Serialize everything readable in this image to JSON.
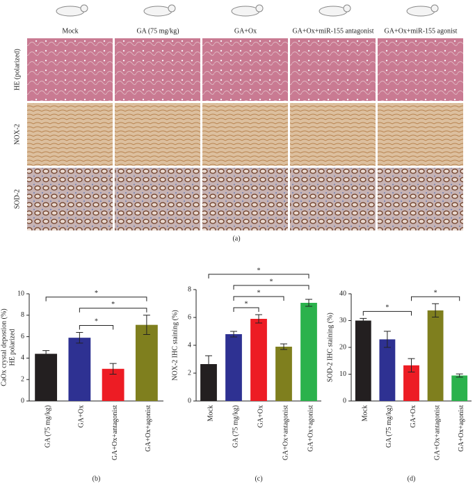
{
  "figure_a": {
    "column_labels": [
      "Mock",
      "GA (75 mg/kg)",
      "GA+Ox",
      "GA+Ox+miR-155 antagonist",
      "GA+Ox+miR-155 agonist"
    ],
    "row_labels": [
      "HE (polarized)",
      "NOX-2",
      "SOD-2"
    ],
    "panel_label": "(a)"
  },
  "chart_data": [
    {
      "type": "bar",
      "panel_label": "(b)",
      "y_label": [
        "CaOx crystal depostion (%)",
        "HE polarized"
      ],
      "categories": [
        "GA (75 mg/kg)",
        "GA+Ox",
        "GA+Ox+antagonist",
        "GA+Ox+agonist"
      ],
      "values": [
        4.4,
        5.9,
        3.0,
        7.1
      ],
      "errors": [
        0.3,
        0.5,
        0.5,
        0.9
      ],
      "colors": [
        "#231f20",
        "#2e3192",
        "#ed1c24",
        "#7f7f1e"
      ],
      "ylim": [
        0,
        10
      ],
      "yticks": [
        0,
        2,
        4,
        6,
        8,
        10
      ],
      "significance": [
        {
          "groups": [
            1,
            2
          ],
          "label": "*"
        },
        {
          "groups": [
            1,
            3
          ],
          "label": "*"
        },
        {
          "groups": [
            0,
            3
          ],
          "label": "*"
        }
      ]
    },
    {
      "type": "bar",
      "panel_label": "(c)",
      "y_label": [
        "NOX-2 IHC staining (%)"
      ],
      "categories": [
        "Mock",
        "GA (75 mg/kg)",
        "GA+Ox",
        "GA+Ox+antagonist",
        "GA+Ox+agonist"
      ],
      "values": [
        2.65,
        4.8,
        5.9,
        3.9,
        7.05
      ],
      "errors": [
        0.6,
        0.2,
        0.3,
        0.2,
        0.25
      ],
      "colors": [
        "#231f20",
        "#2e3192",
        "#ed1c24",
        "#7f7f1e",
        "#2bb24c"
      ],
      "ylim": [
        0,
        8
      ],
      "yticks": [
        0,
        2,
        4,
        6,
        8
      ],
      "significance": [
        {
          "groups": [
            1,
            2
          ],
          "label": "*"
        },
        {
          "groups": [
            1,
            3
          ],
          "label": "*"
        },
        {
          "groups": [
            1,
            4
          ],
          "label": "*"
        },
        {
          "groups": [
            0,
            4
          ],
          "label": "*"
        }
      ]
    },
    {
      "type": "bar",
      "panel_label": "(d)",
      "y_label": [
        "SOD-2 IHC staining (%)"
      ],
      "categories": [
        "Mock",
        "GA (75 mg/kg)",
        "GA+Ox",
        "GA+Ox+antagonist",
        "GA+Ox+agonist"
      ],
      "values": [
        30,
        23,
        13.3,
        33.8,
        9.5
      ],
      "errors": [
        0.8,
        3,
        2.5,
        2.5,
        0.6
      ],
      "colors": [
        "#231f20",
        "#2e3192",
        "#ed1c24",
        "#7f7f1e",
        "#2bb24c"
      ],
      "ylim": [
        0,
        40
      ],
      "yticks": [
        0,
        10,
        20,
        30,
        40
      ],
      "significance": [
        {
          "groups": [
            0,
            2
          ],
          "label": "*"
        },
        {
          "groups": [
            2,
            4
          ],
          "label": "*"
        }
      ]
    }
  ]
}
